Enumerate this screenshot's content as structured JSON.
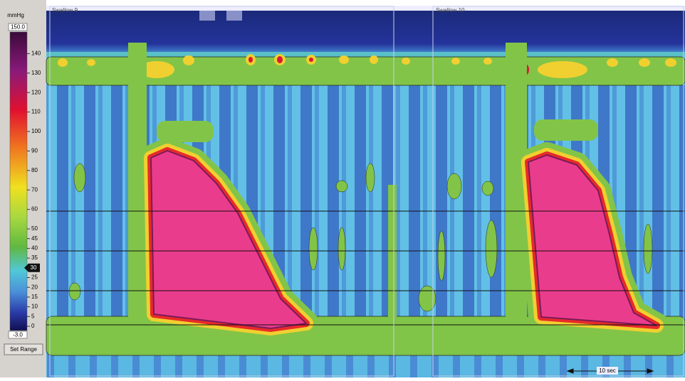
{
  "sidebar": {
    "unit": "mmHg",
    "max": "150.0",
    "min": "-3.0",
    "ticks": [
      140,
      130,
      120,
      110,
      100,
      90,
      80,
      70,
      60,
      50,
      45,
      40,
      35,
      25,
      20,
      15,
      10,
      5,
      0
    ],
    "threshold": 30,
    "button": "Set Range"
  },
  "plot": {
    "swallows": [
      "Swallow 9",
      "Swallow 10"
    ],
    "scale": "10 sec"
  }
}
